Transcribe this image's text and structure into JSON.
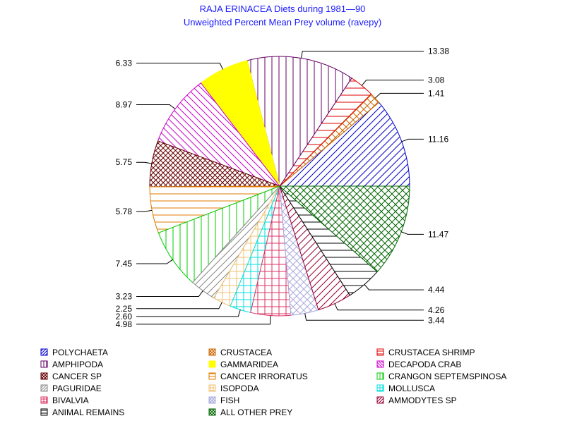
{
  "chart_data": {
    "type": "pie",
    "title": "RAJA ERINACEA Diets during 1981—90",
    "subtitle": "Unweighted Percent Mean Prey volume (ravepy)",
    "slices": [
      {
        "name": "POLYCHAETA",
        "value": 11.16,
        "label": "11.16",
        "color": "#0000cc",
        "pattern": "diag-up"
      },
      {
        "name": "CRUSTACEA",
        "value": 1.41,
        "label": "1.41",
        "color": "#cc6600",
        "pattern": "diag-cross"
      },
      {
        "name": "CRUSTACEA SHRIMP",
        "value": 3.08,
        "label": "3.08",
        "color": "#dd0000",
        "pattern": "horiz"
      },
      {
        "name": "AMPHIPODA",
        "value": 13.38,
        "label": "13.38",
        "color": "#660066",
        "pattern": "vert"
      },
      {
        "name": "GAMMARIDEA",
        "value": 6.33,
        "label": "6.33",
        "color": "#ffff00",
        "pattern": "solid"
      },
      {
        "name": "DECAPODA CRAB",
        "value": 8.97,
        "label": "8.97",
        "color": "#cc00cc",
        "pattern": "diag-down"
      },
      {
        "name": "CANCER SP",
        "value": 5.75,
        "label": "5.75",
        "color": "#660000",
        "pattern": "cross-dense"
      },
      {
        "name": "CANCER IRRORATUS",
        "value": 5.78,
        "label": "5.78",
        "color": "#e07800",
        "pattern": "horiz"
      },
      {
        "name": "CRANGON SEPTEMSPINOSA",
        "value": 7.45,
        "label": "7.45",
        "color": "#00cc00",
        "pattern": "vert"
      },
      {
        "name": "PAGURIDAE",
        "value": 3.23,
        "label": "3.23",
        "color": "#888888",
        "pattern": "diag-up"
      },
      {
        "name": "ISOPODA",
        "value": 2.25,
        "label": "2.25",
        "color": "#f0c070",
        "pattern": "grid"
      },
      {
        "name": "MOLLUSCA",
        "value": 2.6,
        "label": "2.60",
        "color": "#00dddd",
        "pattern": "grid"
      },
      {
        "name": "BIVALVIA",
        "value": 4.98,
        "label": "4.98",
        "color": "#dd3366",
        "pattern": "grid"
      },
      {
        "name": "FISH",
        "value": 3.44,
        "label": "3.44",
        "color": "#aaaadd",
        "pattern": "diag-cross"
      },
      {
        "name": "AMMODYTES SP",
        "value": 4.26,
        "label": "4.26",
        "color": "#990033",
        "pattern": "diag-up"
      },
      {
        "name": "ANIMAL REMAINS",
        "value": 4.44,
        "label": "4.44",
        "color": "#000000",
        "pattern": "horiz"
      },
      {
        "name": "ALL OTHER PREY",
        "value": 11.47,
        "label": "11.47",
        "color": "#006600",
        "pattern": "diag-cross"
      }
    ],
    "legend_placement": "bottom"
  }
}
